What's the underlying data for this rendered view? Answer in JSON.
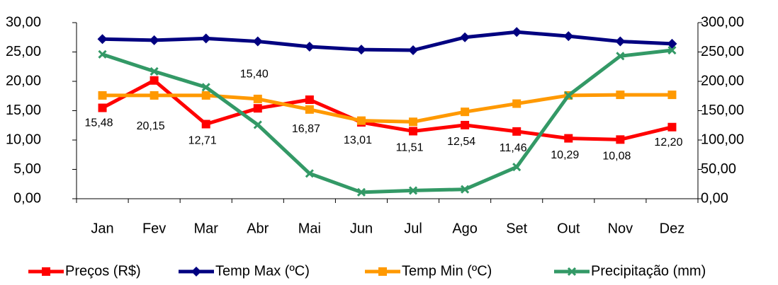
{
  "chart_data": {
    "type": "line",
    "categories": [
      "Jan",
      "Fev",
      "Mar",
      "Abr",
      "Mai",
      "Jun",
      "Jul",
      "Ago",
      "Set",
      "Out",
      "Nov",
      "Dez"
    ],
    "series": [
      {
        "name": "Preços (R$)",
        "color": "#ff0000",
        "marker": "square",
        "values": [
          15.48,
          20.15,
          12.71,
          15.4,
          16.87,
          13.01,
          11.51,
          12.54,
          11.46,
          10.29,
          10.08,
          12.2
        ],
        "value_labels": [
          "15,48",
          "20,15",
          "12,71",
          "15,40",
          "16,87",
          "13,01",
          "11,51",
          "12,54",
          "11,46",
          "10,29",
          "10,08",
          "12,20"
        ]
      },
      {
        "name": "Temp Max (ºC)",
        "color": "#000080",
        "marker": "diamond",
        "values": [
          27.2,
          27.0,
          27.3,
          26.8,
          25.9,
          25.4,
          25.3,
          27.5,
          28.4,
          27.7,
          26.8,
          26.4
        ]
      },
      {
        "name": "Temp Min (ºC)",
        "color": "#ff9900",
        "marker": "square",
        "values": [
          17.6,
          17.6,
          17.6,
          17.0,
          15.2,
          13.3,
          13.1,
          14.8,
          16.2,
          17.6,
          17.7,
          17.7
        ]
      },
      {
        "name": "Precipitação (mm)",
        "color": "#339966",
        "marker": "x",
        "axis": "y2",
        "values": [
          246,
          217,
          190,
          126,
          43,
          11,
          14,
          16,
          54,
          176,
          243,
          253
        ]
      }
    ],
    "ylim": [
      0,
      30
    ],
    "yticks": [
      {
        "value": 0,
        "label": "0,00"
      },
      {
        "value": 5,
        "label": "5,00"
      },
      {
        "value": 10,
        "label": "10,00"
      },
      {
        "value": 15,
        "label": "15,00"
      },
      {
        "value": 20,
        "label": "20,00"
      },
      {
        "value": 25,
        "label": "25,00"
      },
      {
        "value": 30,
        "label": "30,00"
      }
    ],
    "y2lim": [
      0,
      300
    ],
    "y2ticks": [
      {
        "value": 0,
        "label": "0,00"
      },
      {
        "value": 50,
        "label": "50,00"
      },
      {
        "value": 100,
        "label": "100,00"
      },
      {
        "value": 150,
        "label": "150,00"
      },
      {
        "value": 200,
        "label": "200,00"
      },
      {
        "value": 250,
        "label": "250,00"
      },
      {
        "value": 300,
        "label": "300,00"
      }
    ],
    "legend": "bottom"
  }
}
